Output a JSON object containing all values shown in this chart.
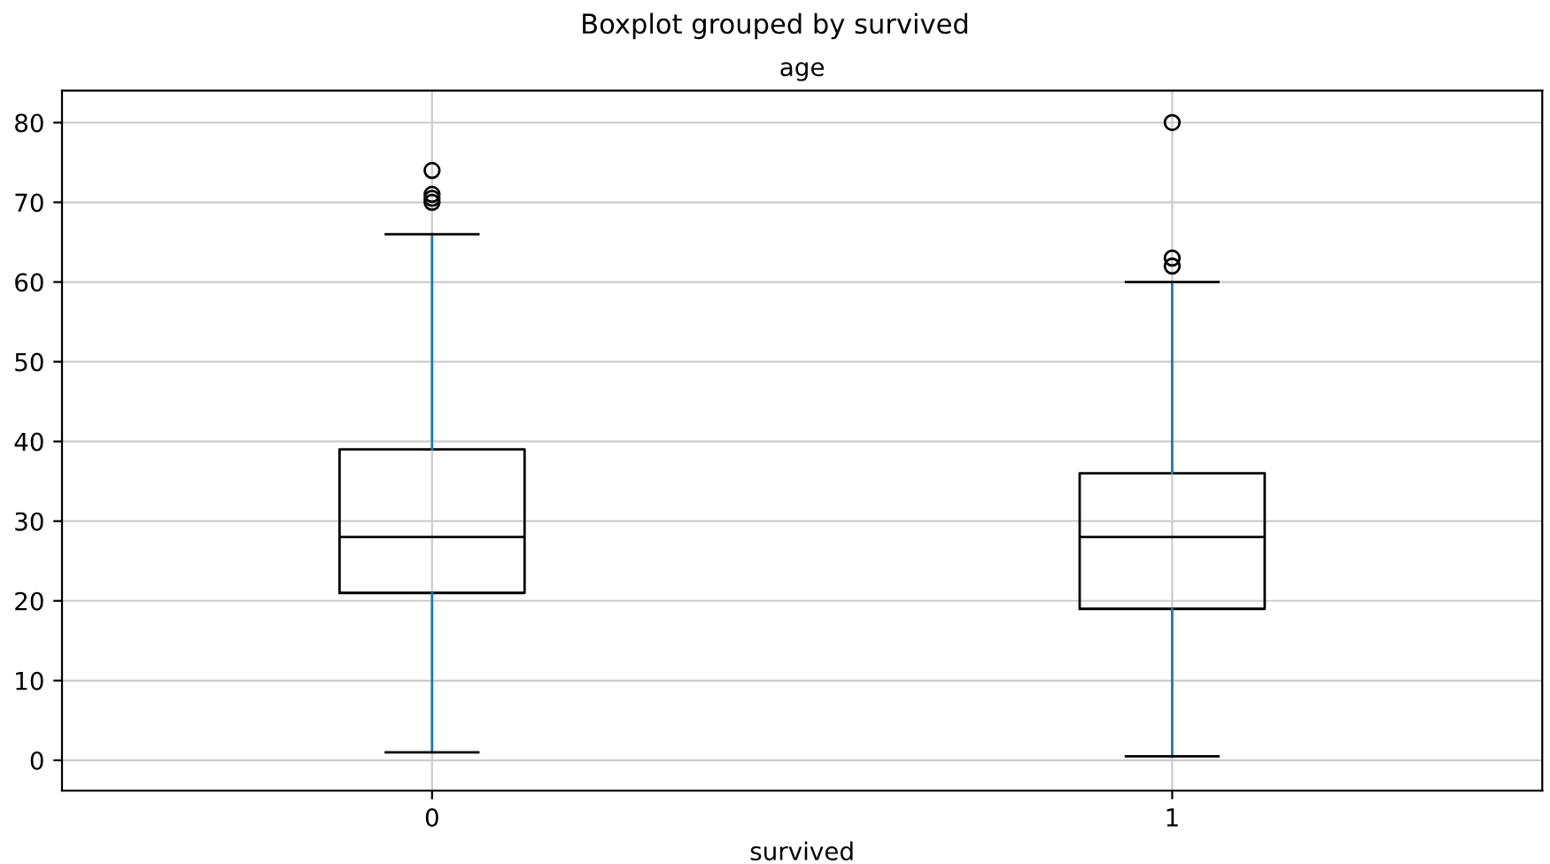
{
  "chart_data": {
    "type": "box",
    "title": "Boxplot grouped by survived",
    "subtitle": "age",
    "xlabel": "survived",
    "categories": [
      "0",
      "1"
    ],
    "boxes": [
      {
        "low": 1,
        "q1": 21,
        "median": 28,
        "q3": 39,
        "high": 66,
        "outliers": [
          70,
          70.5,
          71,
          74
        ]
      },
      {
        "low": 0.5,
        "q1": 19,
        "median": 28,
        "q3": 36,
        "high": 60,
        "outliers": [
          62,
          63,
          80
        ]
      }
    ],
    "color": "#000000",
    "ylim": [
      -3.8,
      84
    ],
    "yticks": [
      0,
      10,
      20,
      30,
      40,
      50,
      60,
      70,
      80
    ],
    "grid": true,
    "marker": "circle"
  }
}
